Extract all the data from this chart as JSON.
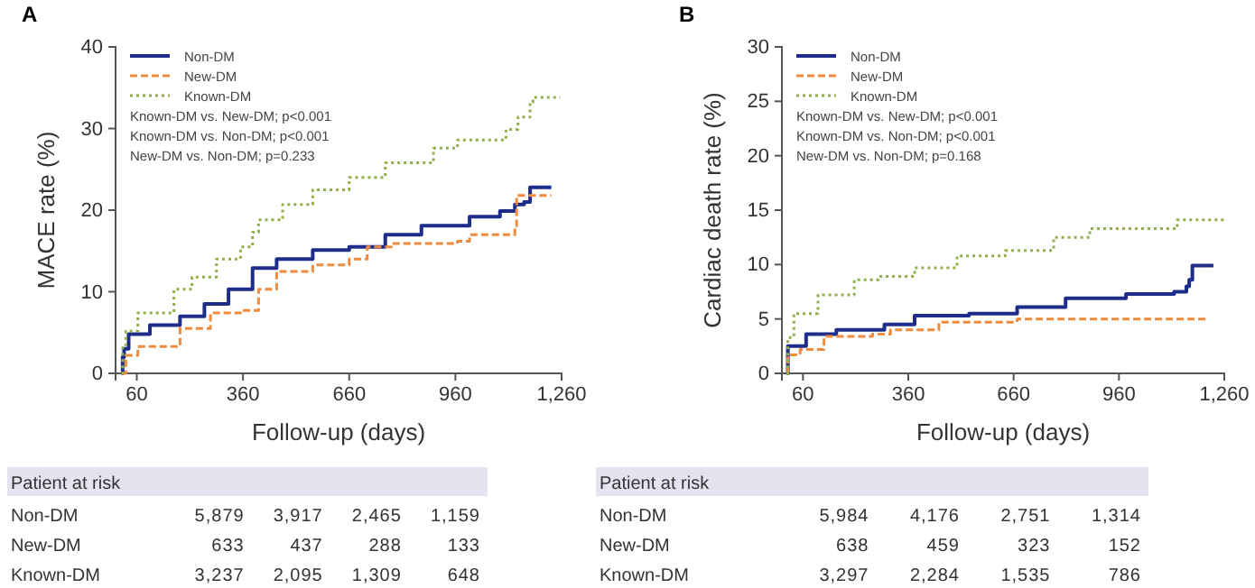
{
  "chart_data": [
    {
      "type": "step",
      "title": "A",
      "xlabel": "Follow-up (days)",
      "ylabel": "MACE rate (%)",
      "xlim": [
        0,
        1260
      ],
      "xticks": [
        60,
        360,
        660,
        960,
        {
          "value": 1260,
          "label": "1,260"
        }
      ],
      "ylim": [
        0,
        40
      ],
      "yticks": [
        0,
        10,
        20,
        30,
        40
      ],
      "legend": "top left",
      "annotations": [
        "Known-DM vs. New-DM; p<0.001",
        "Known-DM vs. Non-DM; p<0.001",
        "New-DM vs. Non-DM; p=0.233"
      ],
      "series": [
        {
          "name": "Non-DM",
          "color": "#1f2d8a",
          "line_style": "solid",
          "x": [
            17,
            20,
            24,
            37,
            97,
            182,
            251,
            319,
            387,
            455,
            557,
            660,
            762,
            864,
            1000,
            1086,
            1128,
            1154,
            1171,
            1231
          ],
          "values": [
            0,
            2,
            3.0,
            4.8,
            5.9,
            7.0,
            8.5,
            10.3,
            12.9,
            14.0,
            15.1,
            15.5,
            17.0,
            18.1,
            19.2,
            19.9,
            20.7,
            21.0,
            22.8,
            22.8
          ]
        },
        {
          "name": "New-DM",
          "color": "#f08a3c",
          "line_style": "dashed",
          "x": [
            17,
            29,
            63,
            182,
            268,
            353,
            404,
            455,
            557,
            660,
            711,
            779,
            966,
            1000,
            1128,
            1133,
            1231
          ],
          "values": [
            0,
            2.2,
            3.3,
            5.5,
            7.4,
            7.7,
            10.3,
            12.5,
            13.3,
            14.0,
            15.5,
            15.9,
            16.2,
            17.0,
            18.1,
            21.8,
            21.8
          ]
        },
        {
          "name": "Known-DM",
          "color": "#8fb04a",
          "line_style": "dotted",
          "x": [
            17,
            20,
            29,
            63,
            165,
            216,
            285,
            353,
            387,
            404,
            472,
            557,
            660,
            762,
            898,
            966,
            1103,
            1137,
            1171,
            1179,
            1256
          ],
          "values": [
            0,
            3.3,
            5.2,
            7.4,
            10.3,
            11.8,
            14.0,
            15.5,
            17.3,
            18.8,
            20.7,
            22.5,
            24.0,
            25.8,
            27.6,
            28.6,
            29.9,
            31.4,
            33.2,
            33.8,
            33.8
          ]
        }
      ]
    },
    {
      "type": "step",
      "title": "B",
      "xlabel": "Follow-up (days)",
      "ylabel": "Cardiac death rate (%)",
      "xlim": [
        0,
        1260
      ],
      "xticks": [
        60,
        360,
        660,
        960,
        {
          "value": 1260,
          "label": "1,260"
        }
      ],
      "ylim": [
        0,
        30
      ],
      "yticks": [
        0,
        5,
        10,
        15,
        20,
        25,
        30
      ],
      "legend": "top left",
      "annotations": [
        "Known-DM vs. New-DM; p<0.001",
        "Known-DM vs. Non-DM; p<0.001",
        "New-DM vs. Non-DM; p=0.168"
      ],
      "series": [
        {
          "name": "Non-DM",
          "color": "#1f2d8a",
          "line_style": "solid",
          "x": [
            14,
            17,
            69,
            155,
            292,
            378,
            533,
            670,
            808,
            980,
            1117,
            1152,
            1160,
            1169,
            1229
          ],
          "values": [
            0,
            2.5,
            3.6,
            4.0,
            4.5,
            5.3,
            5.5,
            6.1,
            6.9,
            7.3,
            7.5,
            8.0,
            8.6,
            9.9,
            9.9
          ]
        },
        {
          "name": "New-DM",
          "color": "#f08a3c",
          "line_style": "dashed",
          "x": [
            14,
            17,
            52,
            120,
            258,
            309,
            447,
            670,
            1212
          ],
          "values": [
            0,
            1.7,
            2.2,
            3.4,
            3.6,
            4.0,
            4.7,
            5.0,
            5.0
          ]
        },
        {
          "name": "Known-DM",
          "color": "#8fb04a",
          "line_style": "dotted",
          "x": [
            14,
            17,
            34,
            103,
            206,
            275,
            378,
            499,
            636,
            774,
            877,
            1100,
            1126,
            1260
          ],
          "values": [
            0,
            3.3,
            5.5,
            7.2,
            8.6,
            8.9,
            9.7,
            10.8,
            11.3,
            12.5,
            13.3,
            13.3,
            14.1,
            14.1
          ]
        }
      ]
    },
    {
      "type": "other",
      "title": "Patient at risk",
      "y_categories": [
        "Non-DM",
        "New-DM",
        "Known-DM"
      ],
      "cell_labels": [
        [
          "5,879",
          "3,917",
          "2,465",
          "1,159"
        ],
        [
          "633",
          "437",
          "288",
          "133"
        ],
        [
          "3,237",
          "2,095",
          "1,309",
          "648"
        ]
      ]
    },
    {
      "type": "other",
      "title": "Patient at risk",
      "y_categories": [
        "Non-DM",
        "New-DM",
        "Known-DM"
      ],
      "cell_labels": [
        [
          "5,984",
          "4,176",
          "2,751",
          "1,314"
        ],
        [
          "638",
          "459",
          "323",
          "152"
        ],
        [
          "3,297",
          "2,284",
          "1,535",
          "786"
        ]
      ]
    }
  ]
}
